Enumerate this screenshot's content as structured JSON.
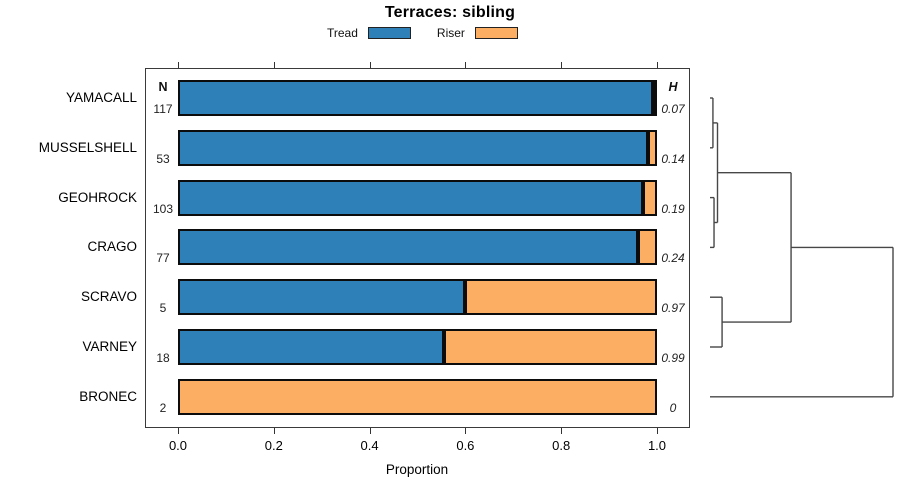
{
  "title": "Terraces: sibling",
  "legend": [
    {
      "label": "Tread",
      "color": "#2E81B8"
    },
    {
      "label": "Riser",
      "color": "#FCAE63"
    }
  ],
  "columns": {
    "n_header": "N",
    "h_header": "H"
  },
  "axis": {
    "label": "Proportion",
    "ticks": [
      "0.0",
      "0.2",
      "0.4",
      "0.6",
      "0.8",
      "1.0"
    ],
    "tick_values": [
      0,
      0.2,
      0.4,
      0.6,
      0.8,
      1.0
    ]
  },
  "chart_data": {
    "type": "bar",
    "orientation": "horizontal-stacked",
    "title": "Terraces: sibling",
    "xlabel": "Proportion",
    "xlim": [
      0,
      1
    ],
    "grid": false,
    "legend_position": "top-center",
    "categories": [
      "YAMACALL",
      "MUSSELSHELL",
      "GEOHROCK",
      "CRAGO",
      "SCRAVO",
      "VARNEY",
      "BRONEC"
    ],
    "n_values": [
      117,
      53,
      103,
      77,
      5,
      18,
      2
    ],
    "h_values": [
      "0.07",
      "0.14",
      "0.19",
      "0.24",
      "0.97",
      "0.99",
      "0"
    ],
    "series": [
      {
        "name": "Tread",
        "color": "#2E81B8",
        "values": [
          0.9915,
          0.9811,
          0.9709,
          0.961,
          0.6,
          0.5556,
          0.0
        ]
      },
      {
        "name": "Riser",
        "color": "#FCAE63",
        "values": [
          0.0085,
          0.0189,
          0.0291,
          0.039,
          0.4,
          0.4444,
          1.0
        ]
      }
    ],
    "dendrogram": {
      "side": "right",
      "leaves": [
        "YAMACALL",
        "MUSSELSHELL",
        "GEOHROCK",
        "CRAGO",
        "SCRAVO",
        "VARNEY",
        "BRONEC"
      ],
      "merges": [
        {
          "a": "YAMACALL",
          "b": "MUSSELSHELL",
          "height": 0.016
        },
        {
          "a": "GEOHROCK",
          "b": "CRAGO",
          "height": 0.022
        },
        {
          "a": "#0",
          "b": "#1",
          "height": 0.041
        },
        {
          "a": "SCRAVO",
          "b": "VARNEY",
          "height": 0.066
        },
        {
          "a": "#2",
          "b": "#3",
          "height": 0.443
        },
        {
          "a": "#4",
          "b": "BRONEC",
          "height": 1.0
        }
      ]
    }
  }
}
